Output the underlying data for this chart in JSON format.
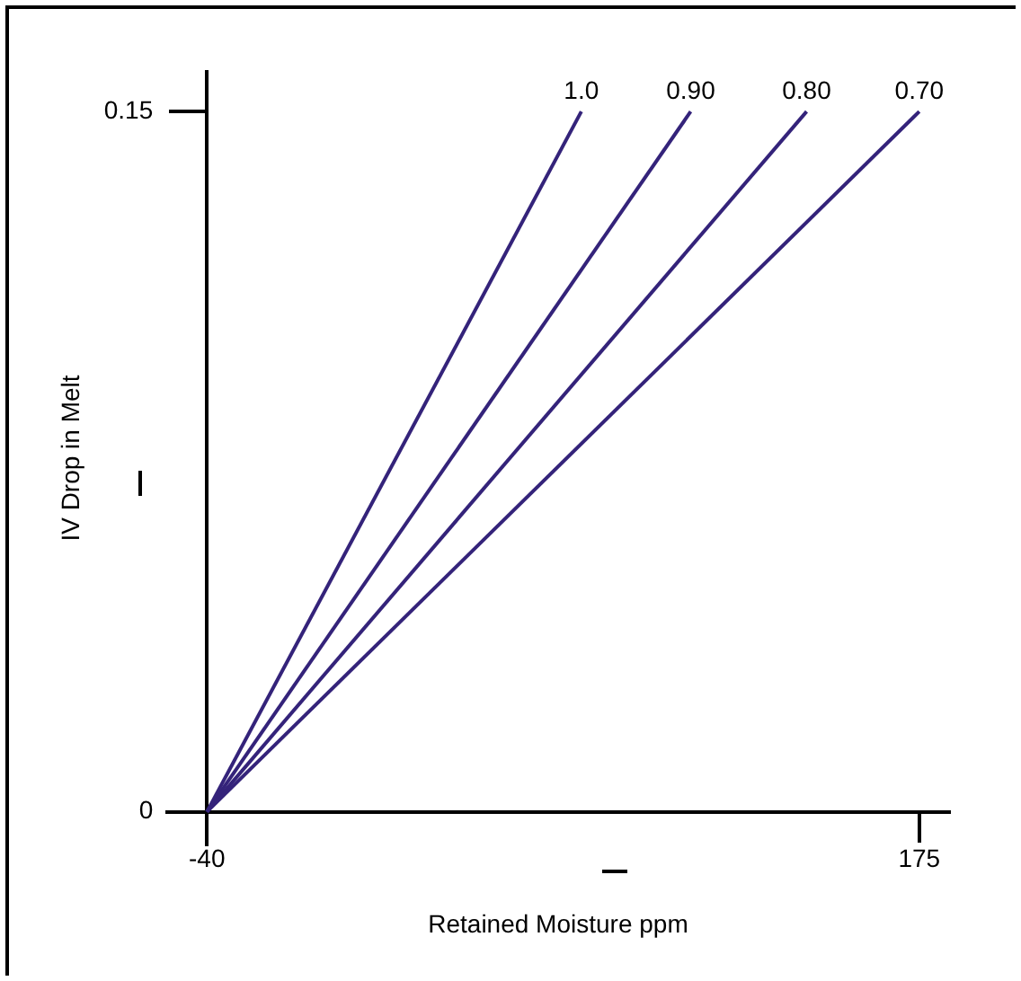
{
  "chart_data": {
    "type": "line",
    "xlabel": "Retained Moisture ppm",
    "ylabel": "IV Drop in Melt",
    "xlim": [
      -52,
      184
    ],
    "ylim": [
      -0.007,
      0.1585
    ],
    "xticks": [
      -40,
      175
    ],
    "yticks": [
      0,
      0.15
    ],
    "grid": false,
    "legend": false,
    "marker": "none",
    "line_style": "solid",
    "series": [
      {
        "name": "1.0",
        "color": "#34237a",
        "x": [
          -40,
          73
        ],
        "values": [
          0,
          0.15
        ]
      },
      {
        "name": "0.90",
        "color": "#34237a",
        "x": [
          -40,
          106
        ],
        "values": [
          0,
          0.15
        ]
      },
      {
        "name": "0.80",
        "color": "#34237a",
        "x": [
          -40,
          141
        ],
        "values": [
          0,
          0.15
        ]
      },
      {
        "name": "0.70",
        "color": "#34237a",
        "x": [
          -40,
          175
        ],
        "values": [
          0,
          0.15
        ]
      }
    ]
  }
}
